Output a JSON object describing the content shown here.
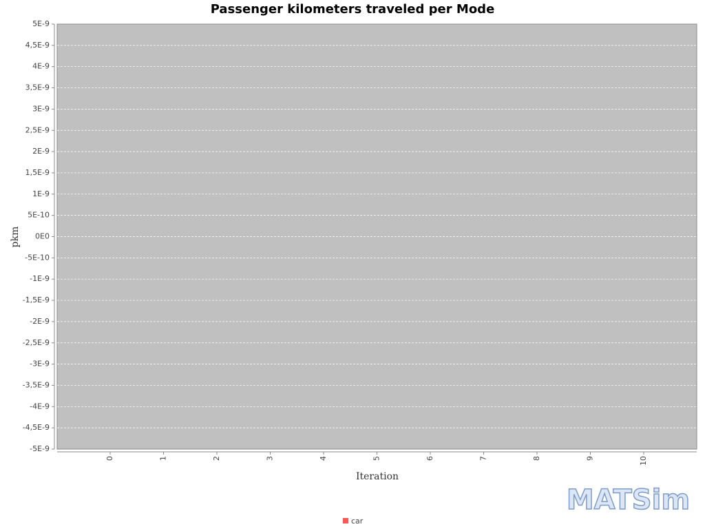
{
  "chart_data": {
    "type": "bar",
    "title": "Passenger kilometers traveled per Mode",
    "x_label": "Iteration",
    "y_label": "pkm",
    "categories": [
      "0",
      "1",
      "2",
      "3",
      "4",
      "5",
      "6",
      "7",
      "8",
      "9",
      "10"
    ],
    "series": [
      {
        "name": "car",
        "color": "#ff5555",
        "values": [
          0,
          0,
          0,
          0,
          0,
          0,
          0,
          0,
          0,
          0,
          0
        ]
      }
    ],
    "ylim": [
      -5e-09,
      5e-09
    ],
    "yticks": [
      {
        "value": -5e-09,
        "label": "-5E-9"
      },
      {
        "value": -4.5e-09,
        "label": "-4,5E-9"
      },
      {
        "value": -4e-09,
        "label": "-4E-9"
      },
      {
        "value": -3.5e-09,
        "label": "-3,5E-9"
      },
      {
        "value": -3e-09,
        "label": "-3E-9"
      },
      {
        "value": -2.5e-09,
        "label": "-2,5E-9"
      },
      {
        "value": -2e-09,
        "label": "-2E-9"
      },
      {
        "value": -1.5e-09,
        "label": "-1,5E-9"
      },
      {
        "value": -1e-09,
        "label": "-1E-9"
      },
      {
        "value": -5e-10,
        "label": "-5E-10"
      },
      {
        "value": 0,
        "label": "0E0"
      },
      {
        "value": 5e-10,
        "label": "5E-10"
      },
      {
        "value": 1e-09,
        "label": "1E-9"
      },
      {
        "value": 1.5e-09,
        "label": "1,5E-9"
      },
      {
        "value": 2e-09,
        "label": "2E-9"
      },
      {
        "value": 2.5e-09,
        "label": "2,5E-9"
      },
      {
        "value": 3e-09,
        "label": "3E-9"
      },
      {
        "value": 3.5e-09,
        "label": "3,5E-9"
      },
      {
        "value": 4e-09,
        "label": "4E-9"
      },
      {
        "value": 4.5e-09,
        "label": "4,5E-9"
      },
      {
        "value": 5e-09,
        "label": "5E-9"
      }
    ],
    "grid": true,
    "legend": "bottom",
    "logo": "MATSim"
  }
}
